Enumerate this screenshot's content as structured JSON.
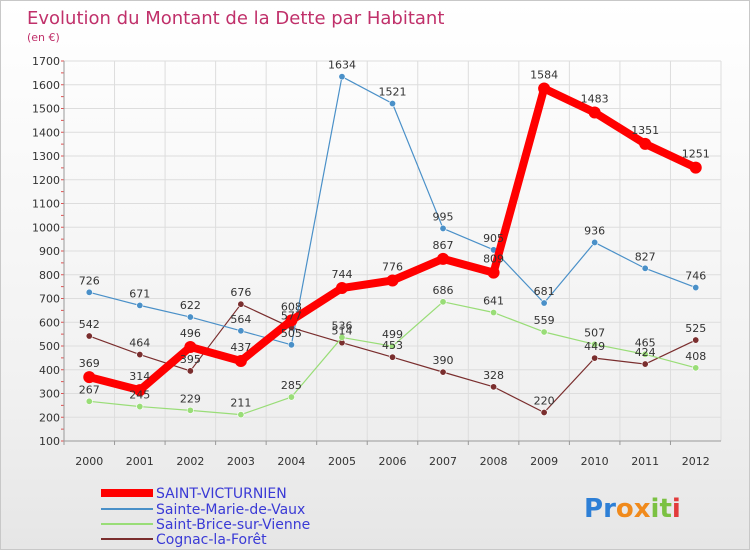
{
  "chart_data": {
    "type": "line",
    "title": "Evolution du Montant de la Dette par Habitant",
    "subtitle": "(en €)",
    "xlabel": "",
    "ylabel": "",
    "categories": [
      "2000",
      "2001",
      "2002",
      "2003",
      "2004",
      "2005",
      "2006",
      "2007",
      "2008",
      "2009",
      "2010",
      "2011",
      "2012"
    ],
    "ylim": [
      100,
      1700
    ],
    "yticks": [
      100,
      200,
      300,
      400,
      500,
      600,
      700,
      800,
      900,
      1000,
      1100,
      1200,
      1300,
      1400,
      1500,
      1600,
      1700
    ],
    "grid": true,
    "legend_position": "bottom-left",
    "series": [
      {
        "name": "SAINT-VICTURNIEN",
        "color": "#ff0000",
        "values": [
          369,
          314,
          496,
          437,
          608,
          744,
          776,
          867,
          809,
          1584,
          1483,
          1351,
          1251
        ],
        "labels": [
          "369",
          "314",
          "496",
          "437",
          "608",
          "744",
          "776",
          "867",
          "809",
          "1584",
          "1483",
          "1351",
          "1251"
        ]
      },
      {
        "name": "Sainte-Marie-de-Vaux",
        "color": "#4a90c8",
        "values": [
          726,
          671,
          622,
          564,
          505,
          1634,
          1521,
          995,
          905,
          681,
          936,
          827,
          746
        ],
        "labels": [
          "726",
          "671",
          "622",
          "564",
          "505",
          "1634",
          "1521",
          "995",
          "905",
          "681",
          "936",
          "827",
          "746"
        ]
      },
      {
        "name": "Saint-Brice-sur-Vienne",
        "color": "#99dd77",
        "values": [
          267,
          245,
          229,
          211,
          285,
          536,
          499,
          686,
          641,
          559,
          507,
          465,
          408
        ],
        "labels": [
          "267",
          "245",
          "229",
          "211",
          "285",
          "536",
          "499",
          "686",
          "641",
          "559",
          "507",
          "465",
          "408"
        ]
      },
      {
        "name": "Cognac-la-Forêt",
        "color": "#7a2e2e",
        "values": [
          542,
          464,
          395,
          676,
          577,
          514,
          453,
          390,
          328,
          220,
          449,
          424,
          525
        ],
        "labels": [
          "542",
          "464",
          "395",
          "676",
          "577",
          "514",
          "453",
          "390",
          "328",
          "220",
          "449",
          "424",
          "525"
        ]
      }
    ]
  },
  "logo": {
    "letters": [
      "P",
      "r",
      "o",
      "x",
      "i",
      "t",
      "i"
    ],
    "colors": [
      "#2d7fd6",
      "#2d7fd6",
      "#f08a1c",
      "#f08a1c",
      "#7bc142",
      "#7bc142",
      "#e23b3b"
    ]
  }
}
